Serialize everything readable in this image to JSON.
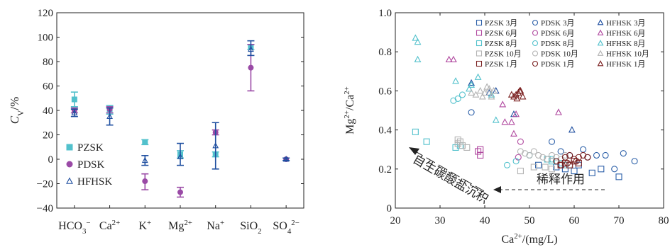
{
  "chart_data": [
    {
      "type": "scatter",
      "ylabel": "CV/%",
      "ylim": [
        -40,
        120
      ],
      "yticks": [
        -40,
        -20,
        0,
        20,
        40,
        60,
        80,
        100,
        120
      ],
      "categories": [
        "HCO3-",
        "Ca2+",
        "K+",
        "Mg2+",
        "Na+",
        "SiO2",
        "SO42-"
      ],
      "legend_position": "bottom-left",
      "series": [
        {
          "name": "PZSK",
          "color": "#52c1cc",
          "marker": "square",
          "points": [
            {
              "cat": "HCO3-",
              "y": 49,
              "lo": 43,
              "hi": 55
            },
            {
              "cat": "Ca2+",
              "y": 41,
              "lo": 37,
              "hi": 44
            },
            {
              "cat": "K+",
              "y": 14,
              "lo": 12,
              "hi": 16
            },
            {
              "cat": "Mg2+",
              "y": 4,
              "lo": 1,
              "hi": 7
            },
            {
              "cat": "Na+",
              "y": 4,
              "lo": 2,
              "hi": 6
            },
            {
              "cat": "SiO2",
              "y": 92,
              "lo": 90,
              "hi": 94
            }
          ]
        },
        {
          "name": "PDSK",
          "color": "#9a4aa6",
          "marker": "circle",
          "points": [
            {
              "cat": "HCO3-",
              "y": 40,
              "lo": 38,
              "hi": 42
            },
            {
              "cat": "Ca2+",
              "y": 41,
              "lo": 38,
              "hi": 43
            },
            {
              "cat": "K+",
              "y": -18,
              "lo": -25,
              "hi": -12
            },
            {
              "cat": "Mg2+",
              "y": -27,
              "lo": -31,
              "hi": -23
            },
            {
              "cat": "Na+",
              "y": 22,
              "lo": 20,
              "hi": 24
            },
            {
              "cat": "SiO2",
              "y": 75,
              "lo": 56,
              "hi": 94
            },
            {
              "cat": "SO42-",
              "y": 0,
              "lo": 0,
              "hi": 0
            }
          ]
        },
        {
          "name": "HFHSK",
          "color": "#1f4fa0",
          "marker": "triangle",
          "points": [
            {
              "cat": "HCO3-",
              "y": 38,
              "lo": 35,
              "hi": 41
            },
            {
              "cat": "Ca2+",
              "y": 35,
              "lo": 28,
              "hi": 42
            },
            {
              "cat": "K+",
              "y": -1,
              "lo": -5,
              "hi": 3
            },
            {
              "cat": "Mg2+",
              "y": 2,
              "lo": -5,
              "hi": 13
            },
            {
              "cat": "Na+",
              "y": 11,
              "lo": -8,
              "hi": 30
            },
            {
              "cat": "SiO2",
              "y": 90,
              "lo": 85,
              "hi": 97
            },
            {
              "cat": "SO42-",
              "y": 0,
              "lo": -1,
              "hi": 1
            }
          ]
        }
      ]
    },
    {
      "type": "scatter",
      "xlabel": "Ca2+/(mg/L)",
      "ylabel": "Mg2+/Ca2+",
      "xlim": [
        20,
        80
      ],
      "ylim": [
        0,
        1.0
      ],
      "xticks": [
        20,
        30,
        40,
        50,
        60,
        70,
        80
      ],
      "yticks": [
        0,
        0.2,
        0.4,
        0.6,
        0.8,
        1.0
      ],
      "legend_position": "top-right",
      "annotations": [
        "自生碳酸盐沉积",
        "稀释作用"
      ],
      "series": [
        {
          "name": "PZSK 3月",
          "color": "#2b5fa8",
          "marker": "square",
          "x": [
            56,
            60,
            64,
            66,
            70,
            61,
            58,
            52
          ],
          "y": [
            0.21,
            0.19,
            0.18,
            0.2,
            0.16,
            0.22,
            0.2,
            0.22
          ]
        },
        {
          "name": "PDSK 3月",
          "color": "#2b5fa8",
          "marker": "circle",
          "x": [
            37,
            55,
            57,
            59,
            62,
            63,
            65,
            67,
            69,
            71,
            73.5,
            57
          ],
          "y": [
            0.49,
            0.34,
            0.29,
            0.27,
            0.3,
            0.26,
            0.27,
            0.27,
            0.2,
            0.28,
            0.24,
            0.22
          ]
        },
        {
          "name": "HFHSK 3月",
          "color": "#1f4fa0",
          "marker": "triangle",
          "x": [
            37,
            41,
            42.5,
            46.5,
            59.5
          ],
          "y": [
            0.64,
            0.59,
            0.6,
            0.48,
            0.4
          ]
        },
        {
          "name": "PZSK 6月",
          "color": "#b0489f",
          "marker": "square",
          "x": [
            39,
            39,
            38.5
          ],
          "y": [
            0.3,
            0.27,
            0.29
          ]
        },
        {
          "name": "PDSK 6月",
          "color": "#b0489f",
          "marker": "circle",
          "x": [
            47.5,
            48
          ],
          "y": [
            0.26,
            0.34
          ]
        },
        {
          "name": "HFHSK 6月",
          "color": "#b0489f",
          "marker": "triangle",
          "x": [
            32,
            33,
            44,
            44.5,
            46,
            46.5,
            47,
            56.5
          ],
          "y": [
            0.76,
            0.76,
            0.53,
            0.44,
            0.44,
            0.38,
            0.48,
            0.49
          ]
        },
        {
          "name": "PZSK 8月",
          "color": "#52c1cc",
          "marker": "square",
          "x": [
            24.5,
            27,
            33.5,
            34.5,
            54,
            55
          ],
          "y": [
            0.39,
            0.34,
            0.31,
            0.32,
            0.25,
            0.24
          ]
        },
        {
          "name": "PDSK 8月",
          "color": "#52c1cc",
          "marker": "circle",
          "x": [
            33,
            34,
            35,
            45,
            47,
            50,
            55,
            56,
            57,
            58
          ],
          "y": [
            0.55,
            0.56,
            0.58,
            0.22,
            0.24,
            0.27,
            0.25,
            0.24,
            0.23,
            0.22
          ]
        },
        {
          "name": "HFHSK 8月",
          "color": "#52c1cc",
          "marker": "triangle",
          "x": [
            24.5,
            25,
            25,
            36.5,
            37,
            38.5,
            41.5,
            42.5,
            33.5
          ],
          "y": [
            0.87,
            0.85,
            0.76,
            0.61,
            0.63,
            0.67,
            0.58,
            0.45,
            0.65
          ]
        },
        {
          "name": "PZSK 10月",
          "color": "#b3b3b3",
          "marker": "square",
          "x": [
            34,
            34.5,
            35,
            36,
            34,
            48,
            51,
            53.5,
            55
          ],
          "y": [
            0.33,
            0.34,
            0.32,
            0.31,
            0.35,
            0.19,
            0.21,
            0.21,
            0.2
          ]
        },
        {
          "name": "PDSK 10月",
          "color": "#b3b3b3",
          "marker": "circle",
          "x": [
            48,
            49,
            50,
            51,
            52,
            53,
            54,
            55,
            56,
            57,
            58,
            59
          ],
          "y": [
            0.29,
            0.28,
            0.27,
            0.29,
            0.27,
            0.26,
            0.25,
            0.27,
            0.26,
            0.25,
            0.27,
            0.22
          ]
        },
        {
          "name": "HFHSK 10月",
          "color": "#b3b3b3",
          "marker": "triangle",
          "x": [
            38,
            39,
            40,
            40.5,
            41,
            41.5,
            42,
            37,
            39.5
          ],
          "y": [
            0.58,
            0.6,
            0.59,
            0.62,
            0.61,
            0.57,
            0.6,
            0.59,
            0.57
          ]
        },
        {
          "name": "PZSK 1月",
          "color": "#7a1f1f",
          "marker": "square",
          "x": [
            57,
            58,
            59,
            60,
            61
          ],
          "y": [
            0.22,
            0.23,
            0.22,
            0.24,
            0.23
          ]
        },
        {
          "name": "PDSK 1月",
          "color": "#7a1f1f",
          "marker": "circle",
          "x": [
            56,
            57,
            58,
            59,
            60,
            61,
            62,
            63,
            58.5,
            60.5
          ],
          "y": [
            0.24,
            0.22,
            0.26,
            0.27,
            0.25,
            0.26,
            0.27,
            0.26,
            0.23,
            0.24
          ]
        },
        {
          "name": "HFHSK 1月",
          "color": "#7a1f1f",
          "marker": "triangle",
          "x": [
            46.5,
            47,
            47.5,
            48,
            46,
            48.5,
            47.2,
            47.8
          ],
          "y": [
            0.57,
            0.58,
            0.59,
            0.6,
            0.58,
            0.57,
            0.56,
            0.6
          ]
        }
      ]
    }
  ]
}
